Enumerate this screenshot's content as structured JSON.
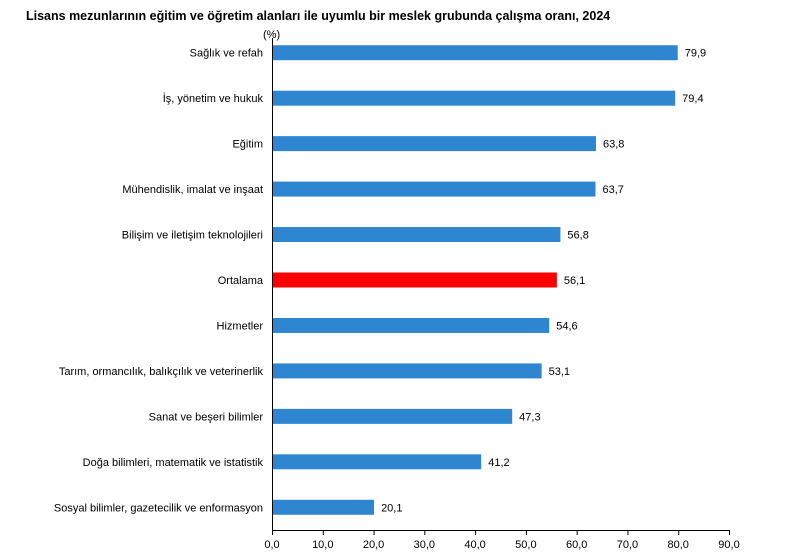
{
  "chart_data": {
    "type": "bar",
    "orientation": "horizontal",
    "title": "Lisans mezunlarının eğitim ve öğretim alanları ile uyumlu bir meslek grubunda çalışma oranı, 2024",
    "unit": "(%)",
    "categories": [
      "Sağlık ve refah",
      "İş, yönetim ve hukuk",
      "Eğitim",
      "Mühendislik, imalat ve inşaat",
      "Bilişim ve iletişim teknolojileri",
      "Ortalama",
      "Hizmetler",
      "Tarım, ormancılık, balıkçılık ve veterinerlik",
      "Sanat ve beşeri bilimler",
      "Doğa bilimleri, matematik ve istatistik",
      "Sosyal bilimler, gazetecilik ve enformasyon"
    ],
    "values": [
      79.9,
      79.4,
      63.8,
      63.7,
      56.8,
      56.1,
      54.6,
      53.1,
      47.3,
      41.2,
      20.1
    ],
    "value_labels": [
      "79,9",
      "79,4",
      "63,8",
      "63,7",
      "56,8",
      "56,1",
      "54,6",
      "53,1",
      "47,3",
      "41,2",
      "20,1"
    ],
    "highlight_category": "Ortalama",
    "xlim": [
      0,
      90
    ],
    "xticks": [
      0,
      10,
      20,
      30,
      40,
      50,
      60,
      70,
      80,
      90
    ],
    "xtick_labels": [
      "0,0",
      "10,0",
      "20,0",
      "30,0",
      "40,0",
      "50,0",
      "60,0",
      "70,0",
      "80,0",
      "90,0"
    ],
    "grid": false,
    "colors": {
      "bar": "#2e86d0",
      "highlight": "#ff0000",
      "axis": "#000000"
    }
  }
}
